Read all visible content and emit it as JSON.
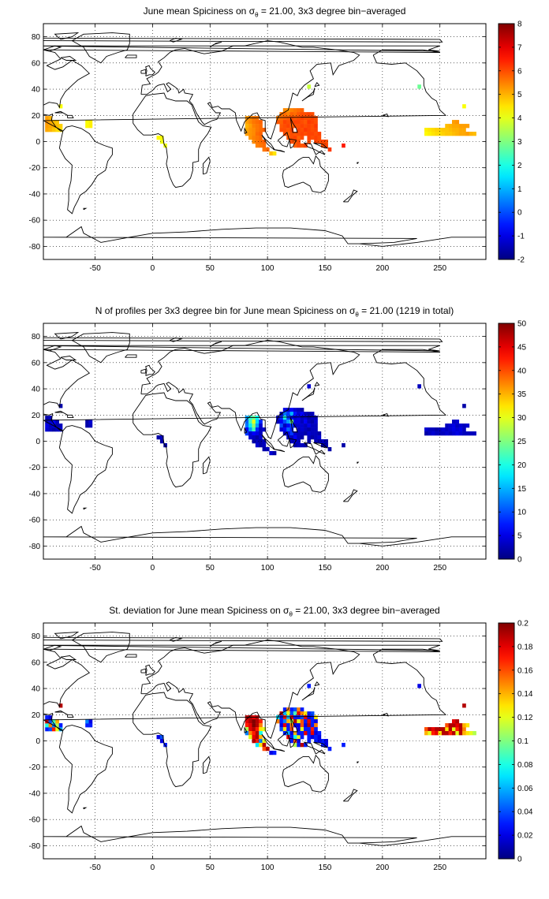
{
  "panels": [
    {
      "title_prefix": "June mean Spiciness on ",
      "title_symbol": "σ",
      "title_sub": "θ",
      "title_suffix": " = 21.00, 3x3 degree bin−averaged",
      "colorbar_ticks": [
        "-2",
        "-1",
        "0",
        "1",
        "2",
        "3",
        "4",
        "5",
        "6",
        "7",
        "8"
      ],
      "colorbar_min": -2,
      "colorbar_max": 8
    },
    {
      "title_prefix": "N of profiles per 3x3 degree bin for June mean Spiciness on ",
      "title_symbol": "σ",
      "title_sub": "θ",
      "title_suffix": " = 21.00 (1219 in total)",
      "colorbar_ticks": [
        "0",
        "5",
        "10",
        "15",
        "20",
        "25",
        "30",
        "35",
        "40",
        "45",
        "50"
      ],
      "colorbar_min": 0,
      "colorbar_max": 50
    },
    {
      "title_prefix": "St. deviation for June mean Spiciness on ",
      "title_symbol": "σ",
      "title_sub": "θ",
      "title_suffix": " = 21.00, 3x3 degree bin−averaged",
      "colorbar_ticks": [
        "0",
        "0.02",
        "0.04",
        "0.06",
        "0.08",
        "0.1",
        "0.12",
        "0.14",
        "0.16",
        "0.18",
        "0.2"
      ],
      "colorbar_min": 0,
      "colorbar_max": 0.2
    }
  ],
  "axes": {
    "x_ticks": [
      "-50",
      "0",
      "50",
      "100",
      "150",
      "200",
      "250"
    ],
    "y_ticks": [
      "80",
      "60",
      "40",
      "20",
      "0",
      "-20",
      "-40",
      "-60",
      "-80"
    ],
    "x_range": [
      -95,
      290
    ],
    "y_range": [
      -90,
      90
    ],
    "grid": "dotted"
  },
  "colors": {
    "colormap": "jet",
    "coastline": "#000000"
  }
}
